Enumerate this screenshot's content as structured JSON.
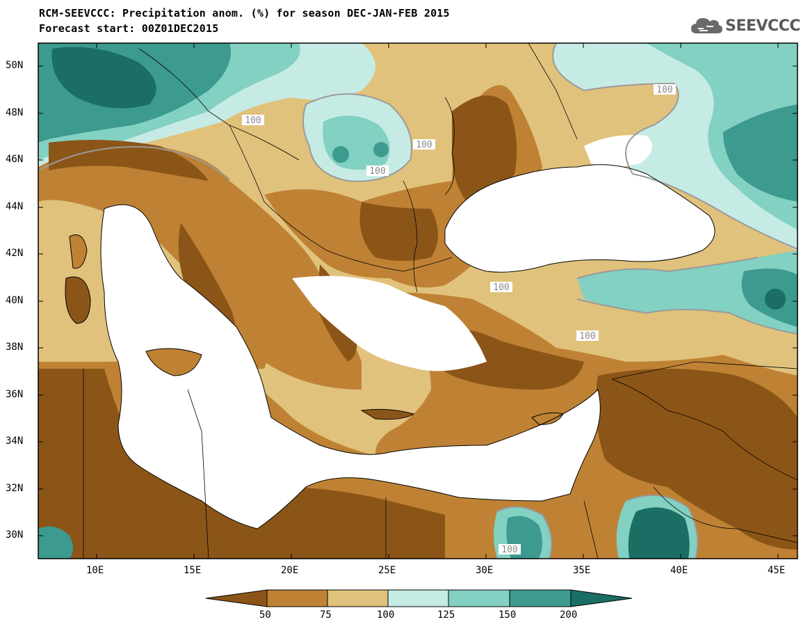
{
  "title_line1": "RCM-SEEVCCC: Precipitation anom. (%) for season DEC-JAN-FEB 2015",
  "title_line2": "Forecast start: 00Z01DEC2015",
  "logo_text": "SEEVCCC",
  "map": {
    "projection": "lat-lon",
    "lon_range": [
      7,
      46
    ],
    "lat_range": [
      29,
      51
    ],
    "lat_ticks": [
      "50N",
      "48N",
      "46N",
      "44N",
      "42N",
      "40N",
      "38N",
      "36N",
      "34N",
      "32N",
      "30N"
    ],
    "lon_ticks": [
      "10E",
      "15E",
      "20E",
      "25E",
      "30E",
      "35E",
      "40E",
      "45E"
    ],
    "contour_label": "100",
    "contour_labels_visible": [
      "100",
      "100",
      "100",
      "100",
      "100",
      "100",
      "100",
      "100"
    ]
  },
  "colorbar": {
    "labels": [
      "50",
      "75",
      "100",
      "125",
      "150",
      "200"
    ],
    "colors": [
      "#8c5518",
      "#bf8234",
      "#e0c27c",
      "#c6ebe4",
      "#82d1c3",
      "#3c9a8e",
      "#1a6e63"
    ]
  }
}
